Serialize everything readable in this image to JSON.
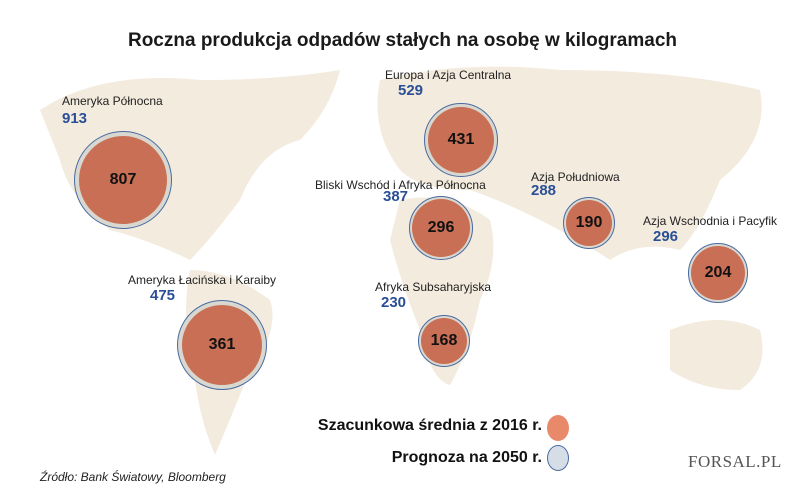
{
  "title": "Roczna produkcja odpadów stałych na osobę w kilogramach",
  "regions": [
    {
      "name": "Ameryka Północna",
      "estimate_2016": "807",
      "forecast_2050": "913"
    },
    {
      "name": "Europa i Azja Centralna",
      "estimate_2016": "431",
      "forecast_2050": "529"
    },
    {
      "name": "Bliski Wschód i Afryka Północna",
      "estimate_2016": "296",
      "forecast_2050": "387"
    },
    {
      "name": "Azja Południowa",
      "estimate_2016": "190",
      "forecast_2050": "288"
    },
    {
      "name": "Azja Wschodnia i Pacyfik",
      "estimate_2016": "204",
      "forecast_2050": "296"
    },
    {
      "name": "Ameryka Łacińska i Karaiby",
      "estimate_2016": "361",
      "forecast_2050": "475"
    },
    {
      "name": "Afryka Subsaharyjska",
      "estimate_2016": "168",
      "forecast_2050": "230"
    }
  ],
  "legend": {
    "estimate": "Szacunkowa średnia z 2016 r.",
    "forecast": "Prognoza na 2050 r."
  },
  "colors": {
    "estimate": "#e8896a",
    "forecast": "#d5dde6",
    "projection_text": "#2a4f96"
  },
  "source": "Źródło: Bank Światowy, Bloomberg",
  "logo": "FORSAL.PL"
}
